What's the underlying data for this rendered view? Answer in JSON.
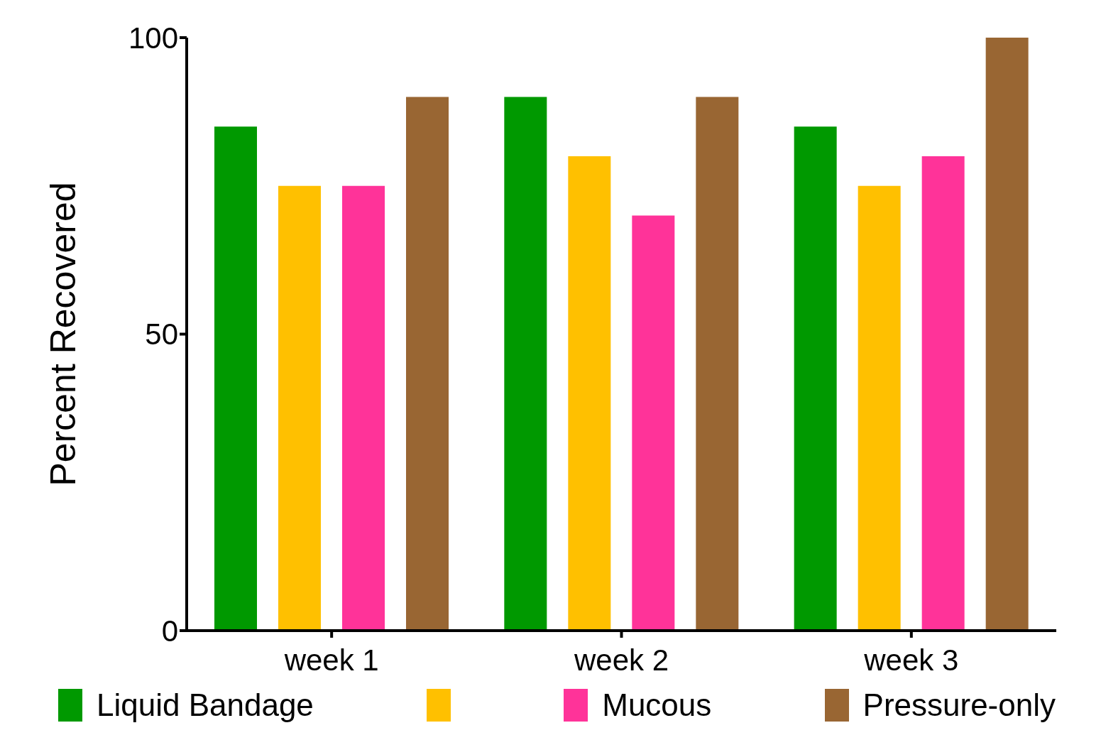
{
  "chart_data": {
    "type": "bar",
    "ylabel": "Percent Recovered",
    "categories": [
      "week 1",
      "week 2",
      "week 3"
    ],
    "series": [
      {
        "name": "Liquid Bandage",
        "color": "#009900",
        "values": [
          85,
          90,
          85
        ]
      },
      {
        "color": "#ffc000",
        "values": [
          75,
          80,
          75
        ]
      },
      {
        "name": "Mucous",
        "color": "#ff3399",
        "values": [
          75,
          70,
          80
        ]
      },
      {
        "name": "Pressure-only",
        "color": "#996633",
        "values": [
          90,
          90,
          100
        ]
      }
    ],
    "ylim": [
      0,
      100
    ],
    "yticks": [
      0,
      50,
      100
    ],
    "grid": false,
    "legend": "bottom"
  }
}
